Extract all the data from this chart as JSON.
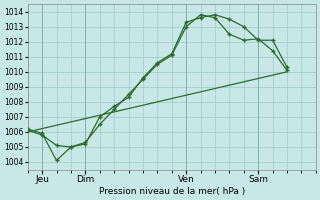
{
  "xlabel": "Pression niveau de la mer( hPa )",
  "bg_color": "#c8e8e8",
  "grid_color": "#a0c8c8",
  "line_color": "#2d6b2d",
  "ylim": [
    1003.5,
    1014.5
  ],
  "yticks": [
    1004,
    1005,
    1006,
    1007,
    1008,
    1009,
    1010,
    1011,
    1012,
    1013,
    1014
  ],
  "xlim": [
    0,
    20
  ],
  "xtick_positions": [
    1,
    4,
    11,
    16
  ],
  "xtick_labels": [
    "Jeu",
    "Dim",
    "Ven",
    "Sam"
  ],
  "line1_x": [
    0,
    1,
    2,
    3,
    4,
    5,
    6,
    7,
    8,
    9,
    10,
    11,
    12,
    13,
    14,
    15,
    16,
    17,
    18
  ],
  "line1_y": [
    1006.2,
    1005.9,
    1004.1,
    1005.0,
    1005.2,
    1007.0,
    1007.7,
    1008.3,
    1009.6,
    1010.6,
    1011.2,
    1013.3,
    1013.6,
    1013.8,
    1013.5,
    1013.0,
    1012.1,
    1012.1,
    1010.3
  ],
  "line2_x": [
    0,
    1,
    2,
    3,
    4,
    5,
    6,
    7,
    8,
    9,
    10,
    11,
    12,
    13,
    14,
    15,
    16,
    17,
    18
  ],
  "line2_y": [
    1006.1,
    1005.8,
    1005.1,
    1005.0,
    1005.3,
    1006.5,
    1007.5,
    1008.5,
    1009.5,
    1010.5,
    1011.1,
    1013.0,
    1013.8,
    1013.6,
    1012.5,
    1012.1,
    1012.2,
    1011.4,
    1010.1
  ],
  "line3_x": [
    0,
    18
  ],
  "line3_y": [
    1006.0,
    1010.0
  ]
}
